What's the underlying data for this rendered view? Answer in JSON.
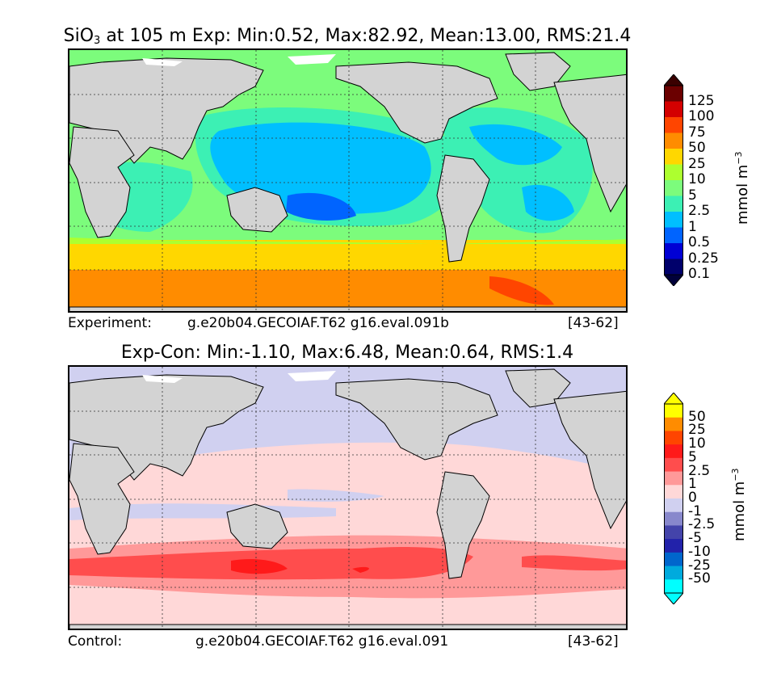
{
  "chart_data": [
    {
      "type": "heatmap",
      "title": "SiO3 at 105 m Exp: Min:0.52, Max:82.92, Mean:13.00, RMS:21.4",
      "title_parts": {
        "var": "SiO",
        "sub": "3",
        "rest": " at 105 m Exp: Min:0.52, Max:82.92, Mean:13.00, RMS:21.4"
      },
      "stats": {
        "depth_m": 105,
        "min": 0.52,
        "max": 82.92,
        "mean": 13.0,
        "rms": 21.4
      },
      "colorbar": {
        "levels": [
          "125",
          "100",
          "75",
          "50",
          "25",
          "10",
          "5",
          "2.5",
          "1",
          "0.5",
          "0.25",
          "0.1"
        ],
        "colors": [
          "#6b0000",
          "#d40000",
          "#ff4500",
          "#ff8c00",
          "#ffd700",
          "#adff2f",
          "#7cfc7c",
          "#3cf0b4",
          "#00bfff",
          "#0064ff",
          "#0000d4",
          "#00006b"
        ],
        "unit_main": "mmol m",
        "unit_exp": "−3"
      },
      "footer": {
        "label": "Experiment:",
        "case": "g.e20b04.GECOIAF.T62 g16.eval.091b",
        "years": "[43-62]"
      }
    },
    {
      "type": "heatmap",
      "title": "Exp-Con: Min:-1.10, Max:6.48, Mean:0.64, RMS:1.4",
      "stats": {
        "min": -1.1,
        "max": 6.48,
        "mean": 0.64,
        "rms": 1.4
      },
      "colorbar": {
        "levels": [
          "50",
          "25",
          "10",
          "5",
          "2.5",
          "1",
          "0",
          "-1",
          "-2.5",
          "-5",
          "-10",
          "-25",
          "-50"
        ],
        "colors": [
          "#ffff00",
          "#ff8c00",
          "#ff4500",
          "#ff1a1a",
          "#ff4d4d",
          "#ff9999",
          "#ffd8d8",
          "#d0d0f0",
          "#8888cc",
          "#4444aa",
          "#2222aa",
          "#0066cc",
          "#00aadd",
          "#00ffff"
        ],
        "unit_main": "mmol m",
        "unit_exp": "−3"
      },
      "footer": {
        "label": "Control:",
        "case": "g.e20b04.GECOIAF.T62 g16.eval.091",
        "years": "[43-62]"
      }
    }
  ],
  "colors": {
    "land": "#d3d3d3",
    "ice": "#ffffff"
  }
}
